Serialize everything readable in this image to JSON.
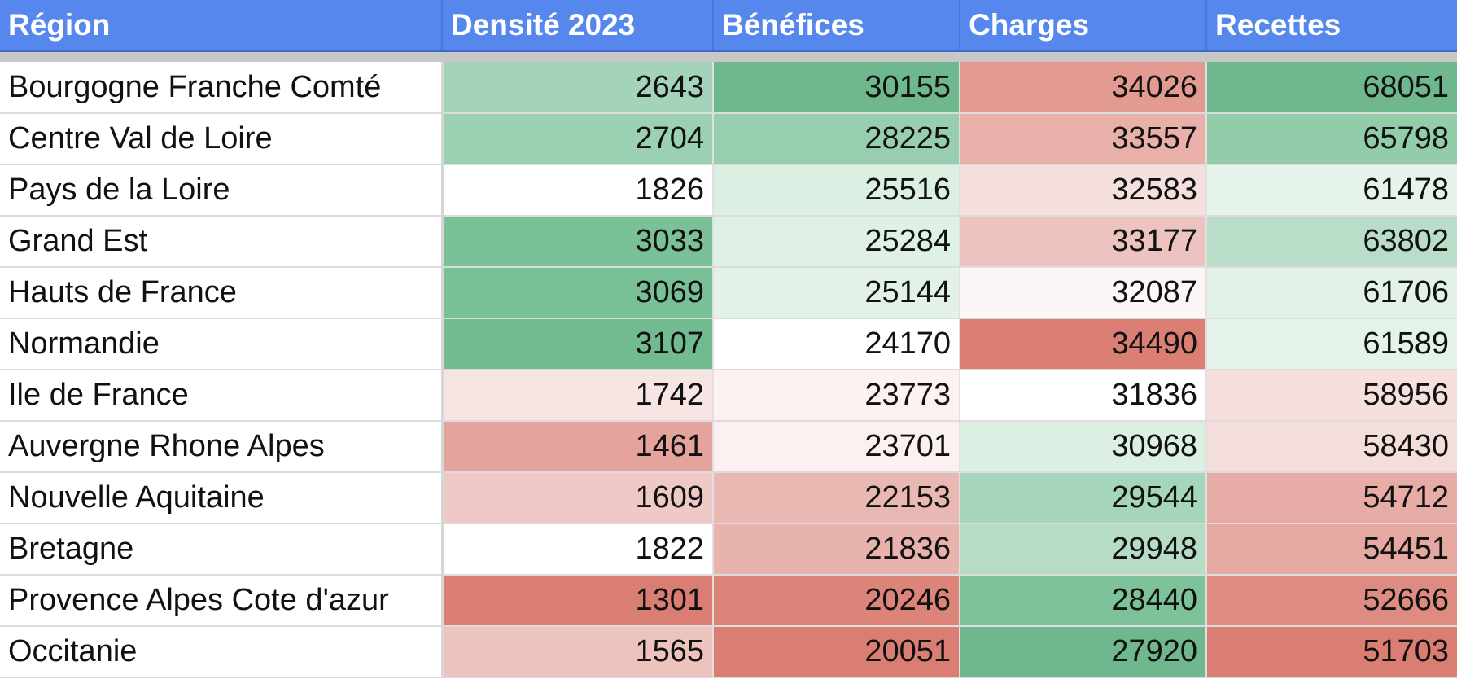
{
  "headers": [
    "Région",
    "Densité 2023",
    "Bénéfices",
    "Charges",
    "Recettes"
  ],
  "rows": [
    {
      "region": "Bourgogne Franche Comté",
      "cells": [
        {
          "value": "2643",
          "color": "#a3d4b9"
        },
        {
          "value": "30155",
          "color": "#6fb88d"
        },
        {
          "value": "34026",
          "color": "#e39a91"
        },
        {
          "value": "68051",
          "color": "#6fb88d"
        }
      ]
    },
    {
      "region": "Centre Val de Loire",
      "cells": [
        {
          "value": "2704",
          "color": "#9bd0b3"
        },
        {
          "value": "28225",
          "color": "#97ceb0"
        },
        {
          "value": "33557",
          "color": "#e8b0a9"
        },
        {
          "value": "65798",
          "color": "#93cca9"
        }
      ]
    },
    {
      "region": "Pays de la Loire",
      "cells": [
        {
          "value": "1826",
          "color": "#ffffff"
        },
        {
          "value": "25516",
          "color": "#dcefe3"
        },
        {
          "value": "32583",
          "color": "#f5e0de"
        },
        {
          "value": "61478",
          "color": "#e6f4eb"
        }
      ]
    },
    {
      "region": "Grand Est",
      "cells": [
        {
          "value": "3033",
          "color": "#7bc197"
        },
        {
          "value": "25284",
          "color": "#dff0e5"
        },
        {
          "value": "33177",
          "color": "#ecc3be"
        },
        {
          "value": "63802",
          "color": "#b9ddc8"
        }
      ]
    },
    {
      "region": "Hauts de France",
      "cells": [
        {
          "value": "3069",
          "color": "#78c095"
        },
        {
          "value": "25144",
          "color": "#e2f2e8"
        },
        {
          "value": "32087",
          "color": "#fcf7f6"
        },
        {
          "value": "61706",
          "color": "#e2f2e8"
        }
      ]
    },
    {
      "region": "Normandie",
      "cells": [
        {
          "value": "3107",
          "color": "#72bb90"
        },
        {
          "value": "24170",
          "color": "#ffffff"
        },
        {
          "value": "34490",
          "color": "#db7f74"
        },
        {
          "value": "61589",
          "color": "#e4f3e9"
        }
      ]
    },
    {
      "region": "Ile de France",
      "cells": [
        {
          "value": "1742",
          "color": "#f6e5e3"
        },
        {
          "value": "23773",
          "color": "#fbf2f1"
        },
        {
          "value": "31836",
          "color": "#ffffff"
        },
        {
          "value": "58956",
          "color": "#f5e0de"
        }
      ]
    },
    {
      "region": "Auvergne Rhone Alpes",
      "cells": [
        {
          "value": "1461",
          "color": "#e4a39b"
        },
        {
          "value": "23701",
          "color": "#faf1f0"
        },
        {
          "value": "30968",
          "color": "#dbefe2"
        },
        {
          "value": "58430",
          "color": "#f4dedb"
        }
      ]
    },
    {
      "region": "Nouvelle Aquitaine",
      "cells": [
        {
          "value": "1609",
          "color": "#efc9c5"
        },
        {
          "value": "22153",
          "color": "#eab8b2"
        },
        {
          "value": "29544",
          "color": "#a5d5ba"
        },
        {
          "value": "54712",
          "color": "#e6aca5"
        }
      ]
    },
    {
      "region": "Bretagne",
      "cells": [
        {
          "value": "1822",
          "color": "#ffffff"
        },
        {
          "value": "21836",
          "color": "#e8b3ad"
        },
        {
          "value": "29948",
          "color": "#b6dcc6"
        },
        {
          "value": "54451",
          "color": "#e5a9a2"
        }
      ]
    },
    {
      "region": "Provence Alpes Cote d'azur",
      "cells": [
        {
          "value": "1301",
          "color": "#da7d72"
        },
        {
          "value": "20246",
          "color": "#dc8479"
        },
        {
          "value": "28440",
          "color": "#7dc298"
        },
        {
          "value": "52666",
          "color": "#de8b81"
        }
      ]
    },
    {
      "region": "Occitanie",
      "cells": [
        {
          "value": "1565",
          "color": "#edc3be"
        },
        {
          "value": "20051",
          "color": "#da7d72"
        },
        {
          "value": "27920",
          "color": "#6fb88d"
        },
        {
          "value": "51703",
          "color": "#da7d72"
        }
      ]
    }
  ]
}
